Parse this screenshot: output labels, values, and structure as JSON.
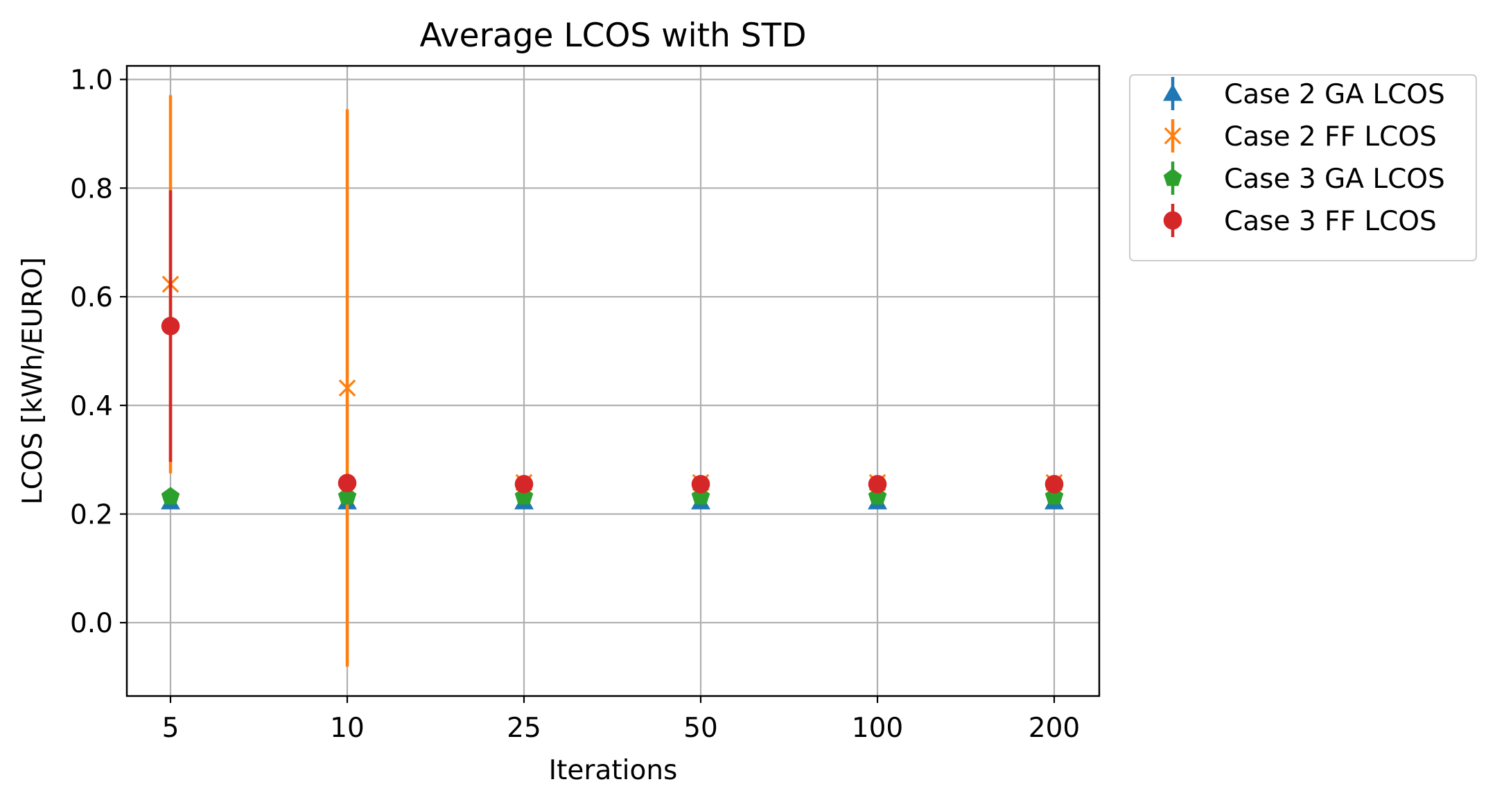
{
  "chart_data": {
    "type": "scatter",
    "title": "Average LCOS with STD",
    "xlabel": "Iterations",
    "ylabel": "LCOS [kWh/EURO]",
    "categories": [
      "5",
      "10",
      "25",
      "50",
      "100",
      "200"
    ],
    "ylim": [
      -0.135,
      1.025
    ],
    "yticks": [
      0.0,
      0.2,
      0.4,
      0.6,
      0.8,
      1.0
    ],
    "ytick_labels": [
      "0.0",
      "0.2",
      "0.4",
      "0.6",
      "0.8",
      "1.0"
    ],
    "grid": true,
    "legend_position": "outside-top-right",
    "series": [
      {
        "name": "Case 2 GA LCOS",
        "marker": "triangle",
        "color": "#1f77b4",
        "values": [
          0.222,
          0.222,
          0.222,
          0.222,
          0.222,
          0.222
        ],
        "std": [
          0.0,
          0.0,
          0.0,
          0.0,
          0.0,
          0.0
        ]
      },
      {
        "name": "Case 2 FF LCOS",
        "marker": "x",
        "color": "#ff7f0e",
        "values": [
          0.623,
          0.432,
          0.258,
          0.258,
          0.258,
          0.258
        ],
        "std": [
          0.348,
          0.513,
          0.0,
          0.0,
          0.0,
          0.0
        ]
      },
      {
        "name": "Case 3 GA LCOS",
        "marker": "pentagon",
        "color": "#2ca02c",
        "values": [
          0.232,
          0.232,
          0.232,
          0.232,
          0.232,
          0.232
        ],
        "std": [
          0.0,
          0.0,
          0.0,
          0.0,
          0.0,
          0.0
        ]
      },
      {
        "name": "Case 3 FF LCOS",
        "marker": "circle",
        "color": "#d62728",
        "values": [
          0.546,
          0.257,
          0.255,
          0.255,
          0.255,
          0.255
        ],
        "std": [
          0.25,
          0.0,
          0.0,
          0.0,
          0.0,
          0.0
        ]
      }
    ]
  }
}
